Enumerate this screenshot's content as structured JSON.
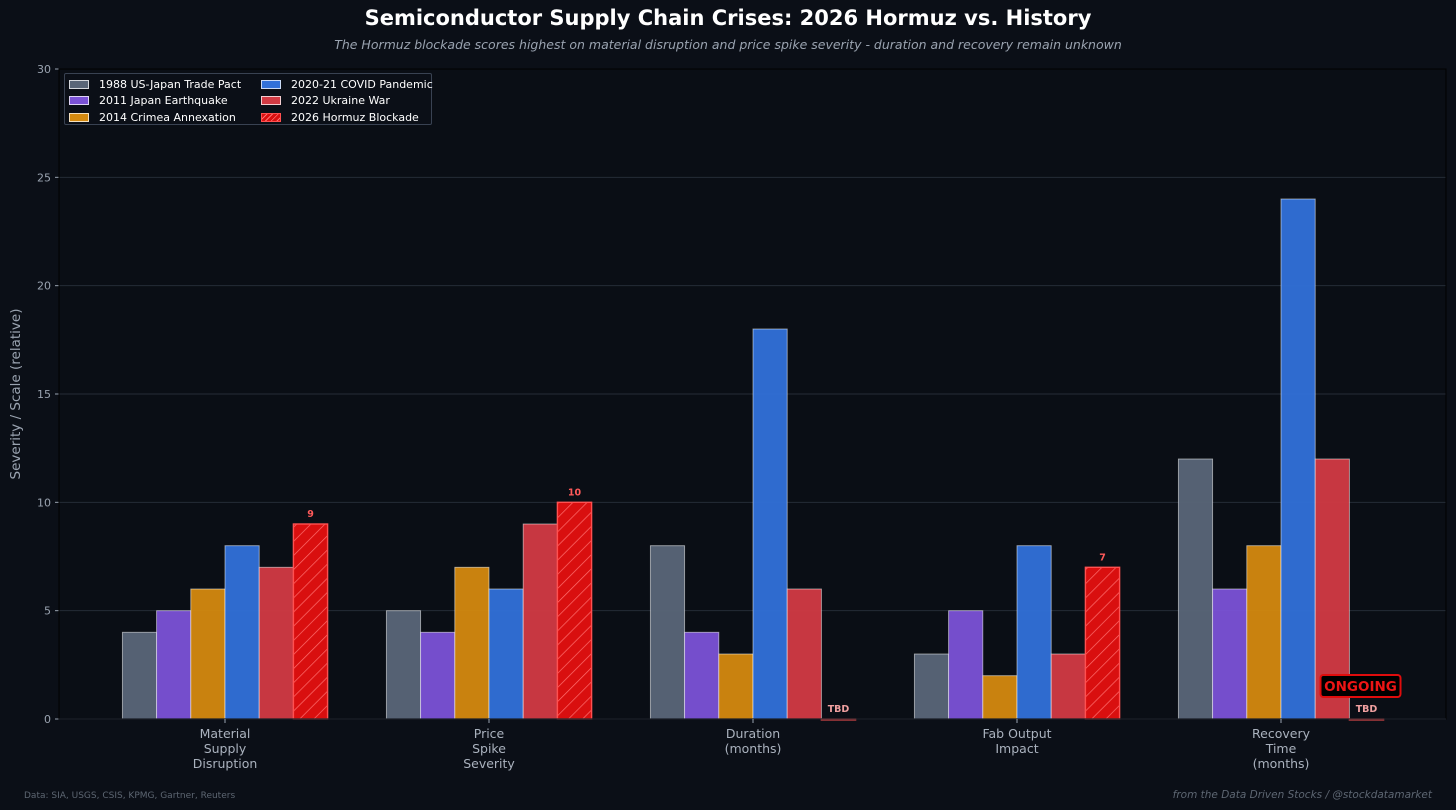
{
  "header": {
    "title": "Semiconductor Supply Chain Crises: 2026 Hormuz vs. History",
    "subtitle": "The Hormuz blockade scores highest on material disruption and price spike severity - duration and recovery remain unknown"
  },
  "footer": {
    "source": "Data: SIA, USGS, CSIS, KPMG, Gartner, Reuters",
    "credit": "from the Data Driven Stocks / @stockdatamarket"
  },
  "chart_data": {
    "type": "bar",
    "title": "Semiconductor Supply Chain Crises: 2026 Hormuz vs. History",
    "subtitle": "The Hormuz blockade scores highest on material disruption and price spike severity - duration and recovery remain unknown",
    "xlabel": "",
    "ylabel": "Severity / Scale (relative)",
    "ylim": [
      0,
      30
    ],
    "yticks": [
      0,
      5,
      10,
      15,
      20,
      25,
      30
    ],
    "grid": true,
    "legend_position": "top-left",
    "categories": [
      [
        "Material",
        "Supply",
        "Disruption"
      ],
      [
        "Price",
        "Spike",
        "Severity"
      ],
      [
        "Duration",
        "(months)"
      ],
      [
        "Fab Output",
        "Impact"
      ],
      [
        "Recovery",
        "Time",
        "(months)"
      ]
    ],
    "series": [
      {
        "name": "1988 US-Japan Trade Pact",
        "color": "#5a6678",
        "values": [
          4,
          5,
          8,
          3,
          12
        ]
      },
      {
        "name": "2011 Japan Earthquake",
        "color": "#7b52d6",
        "values": [
          5,
          4,
          4,
          5,
          6
        ]
      },
      {
        "name": "2014 Crimea Annexation",
        "color": "#d4890f",
        "values": [
          6,
          7,
          3,
          2,
          8
        ]
      },
      {
        "name": "2020-21 COVID Pandemic",
        "color": "#3271d9",
        "values": [
          8,
          6,
          18,
          8,
          24
        ]
      },
      {
        "name": "2022 Ukraine War",
        "color": "#d23a43",
        "values": [
          7,
          9,
          6,
          3,
          12
        ]
      },
      {
        "name": "2026 Hormuz Blockade",
        "color": "#d90f0f",
        "hatched": true,
        "values": [
          9,
          10,
          0,
          7,
          0
        ]
      }
    ],
    "bar_labels": [
      "9",
      "10",
      "TBD",
      "7",
      "TBD"
    ],
    "annotations": [
      {
        "text": "ONGOING",
        "category": 4
      }
    ]
  }
}
